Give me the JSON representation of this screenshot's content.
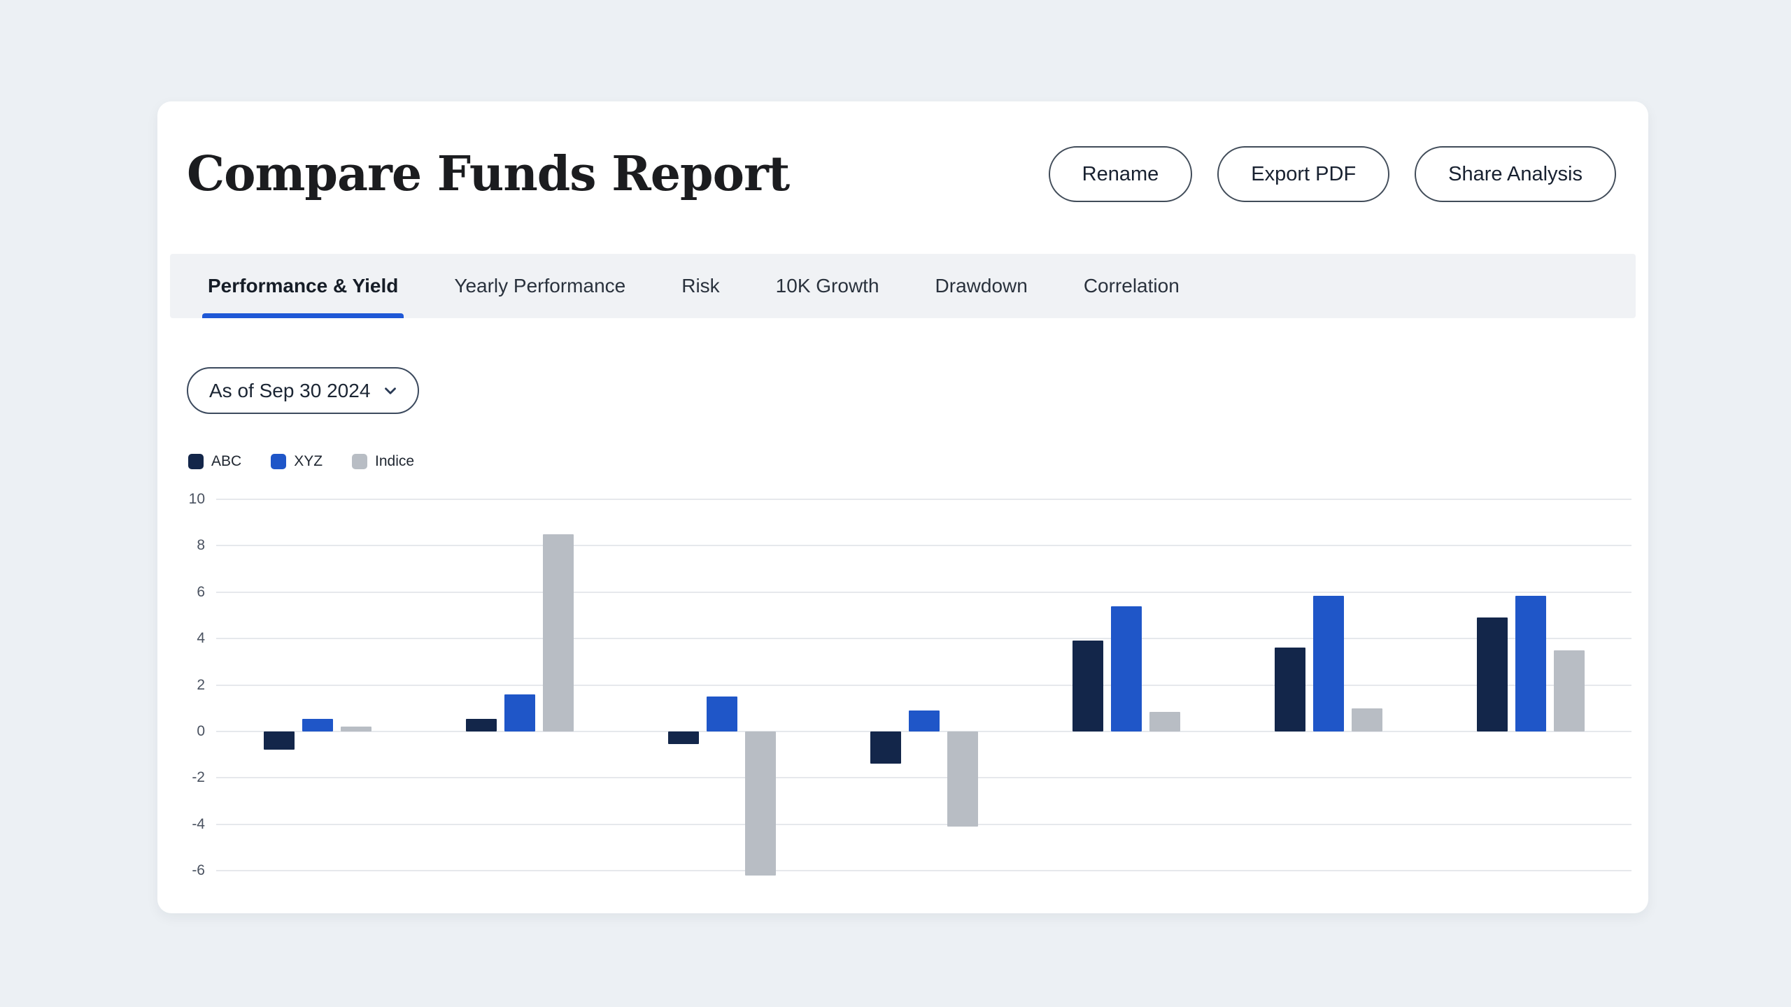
{
  "page": {
    "background_color": "#ecf0f4",
    "card_color": "#ffffff",
    "accent_color": "#1f58d6"
  },
  "header": {
    "title": "Compare Funds Report",
    "buttons": [
      {
        "label": "Rename"
      },
      {
        "label": "Export PDF"
      },
      {
        "label": "Share Analysis"
      }
    ]
  },
  "tabs": [
    {
      "label": "Performance & Yield",
      "active": true
    },
    {
      "label": "Yearly Performance",
      "active": false
    },
    {
      "label": "Risk",
      "active": false
    },
    {
      "label": "10K Growth",
      "active": false
    },
    {
      "label": "Drawdown",
      "active": false
    },
    {
      "label": "Correlation",
      "active": false
    }
  ],
  "filters": {
    "as_of_label": "As of Sep 30 2024"
  },
  "legend": {
    "items": [
      {
        "label": "ABC",
        "color": "#13264a"
      },
      {
        "label": "XYZ",
        "color": "#1f56c8"
      },
      {
        "label": "Indice",
        "color": "#b8bdc4"
      }
    ]
  },
  "chart_data": {
    "type": "bar",
    "title": "",
    "categories": [
      "",
      "",
      "",
      "",
      "",
      "",
      ""
    ],
    "series": [
      {
        "name": "ABC",
        "color": "#13264a",
        "values": [
          -0.8,
          0.55,
          -0.55,
          -1.4,
          3.9,
          3.6,
          4.9
        ]
      },
      {
        "name": "XYZ",
        "color": "#1f56c8",
        "values": [
          0.55,
          1.6,
          1.5,
          0.9,
          5.4,
          5.85,
          5.85
        ]
      },
      {
        "name": "Indice",
        "color": "#b8bdc4",
        "values": [
          0.2,
          8.5,
          -6.2,
          -4.1,
          0.85,
          1.0,
          3.5
        ]
      }
    ],
    "ylim": [
      -6,
      10
    ],
    "y_ticks": [
      10,
      8,
      6,
      4,
      2,
      0,
      -2,
      -4,
      -6
    ],
    "grid": true,
    "x_tick_labels": false,
    "legend_position": "top-left"
  }
}
